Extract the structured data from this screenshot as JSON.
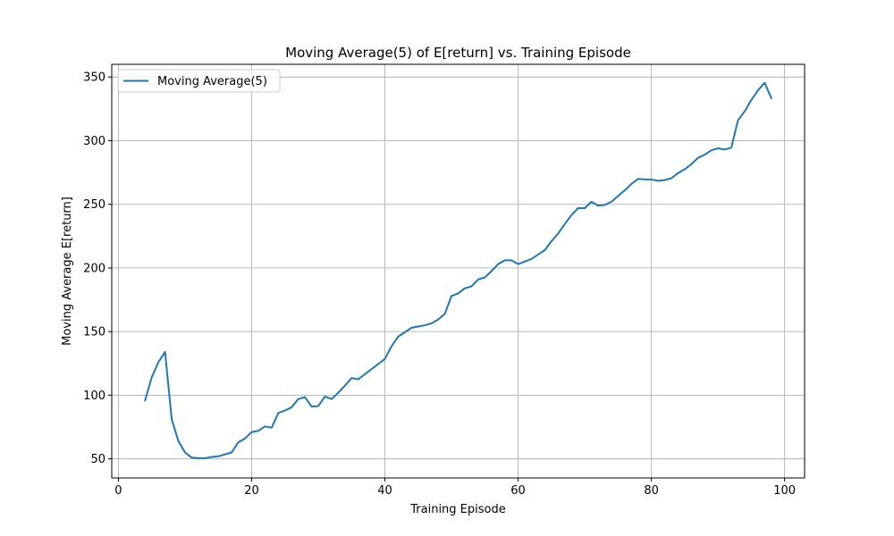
{
  "chart_data": {
    "type": "line",
    "title": "Moving Average(5) of E[return] vs. Training Episode",
    "xlabel": "Training Episode",
    "ylabel": "Moving Average E[return]",
    "xlim": [
      -1,
      103
    ],
    "ylim": [
      35,
      360
    ],
    "xticks": [
      0,
      20,
      40,
      60,
      80,
      100
    ],
    "yticks": [
      50,
      100,
      150,
      200,
      250,
      300,
      350
    ],
    "xtick_labels": [
      "0",
      "20",
      "40",
      "60",
      "80",
      "100"
    ],
    "ytick_labels": [
      "50",
      "100",
      "150",
      "200",
      "250",
      "300",
      "350"
    ],
    "grid": true,
    "legend_position": "top-left",
    "series": [
      {
        "name": "Moving Average(5)",
        "color": "#1f77b4",
        "x": [
          4,
          5,
          6,
          7,
          8,
          9,
          10,
          11,
          12,
          13,
          14,
          15,
          16,
          17,
          18,
          19,
          20,
          21,
          22,
          23,
          24,
          25,
          26,
          27,
          28,
          29,
          30,
          31,
          32,
          33,
          34,
          35,
          36,
          37,
          38,
          39,
          40,
          41,
          42,
          43,
          44,
          45,
          46,
          47,
          48,
          49,
          50,
          51,
          52,
          53,
          54,
          55,
          56,
          57,
          58,
          59,
          60,
          61,
          62,
          63,
          64,
          65,
          66,
          67,
          68,
          69,
          70,
          71,
          72,
          73,
          74,
          75,
          76,
          77,
          78,
          79,
          80,
          81,
          82,
          83,
          84,
          85,
          86,
          87,
          88,
          89,
          90,
          91,
          92,
          93,
          94,
          95,
          96,
          97,
          98
        ],
        "values": [
          96,
          114,
          126,
          134,
          81,
          64,
          55,
          51,
          50.5,
          50.5,
          51.5,
          52,
          53.5,
          55,
          63,
          66,
          71,
          72,
          75.5,
          74.5,
          86,
          88,
          90.5,
          97,
          98.5,
          91,
          91.5,
          99,
          97,
          102,
          107.5,
          113.5,
          112.5,
          116.5,
          120.5,
          124.5,
          128.5,
          138.5,
          146,
          149.5,
          153,
          154,
          155,
          156.5,
          159.5,
          164,
          178,
          180,
          184,
          185.5,
          191,
          192.5,
          197.5,
          203,
          206,
          206,
          203,
          205,
          207,
          210.5,
          214,
          221,
          227,
          234.5,
          241.5,
          247,
          247,
          252,
          249,
          249.5,
          252,
          256.5,
          261,
          266,
          270,
          269.5,
          269.5,
          268.5,
          269,
          270.5,
          274.5,
          277.5,
          281.5,
          286.5,
          289,
          292.5,
          294,
          293,
          294.5,
          316,
          323,
          332,
          339.5,
          345.5,
          333.5
        ]
      }
    ]
  }
}
